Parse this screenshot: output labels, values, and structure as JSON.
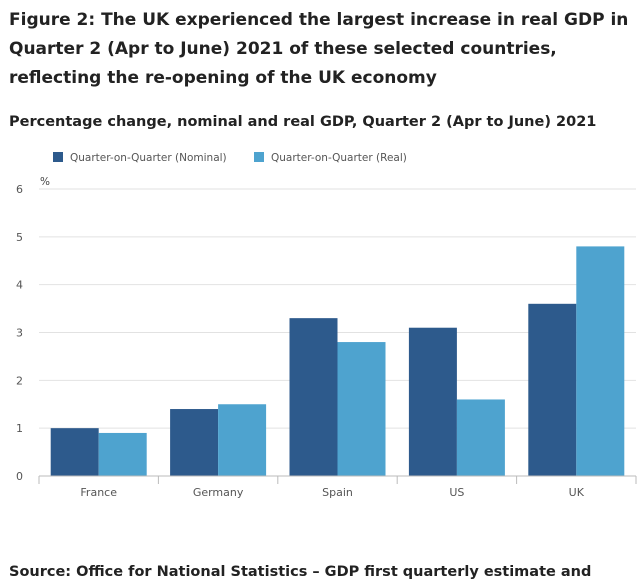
{
  "figure": {
    "title": "Figure 2: The UK experienced the largest increase in real GDP in Quarter 2 (Apr to June) 2021 of these selected countries, reflecting the re-opening of the UK economy",
    "subtitle": "Percentage change, nominal and real GDP, Quarter 2 (Apr to June) 2021",
    "source": "Source: Office for National Statistics – GDP first quarterly estimate and"
  },
  "chart_data": {
    "type": "bar",
    "title": "Percentage change, nominal and real GDP, Quarter 2 (Apr to June) 2021",
    "xlabel": "",
    "ylabel": "%",
    "ylim": [
      0,
      6
    ],
    "yticks": [
      0,
      1,
      2,
      3,
      4,
      5,
      6
    ],
    "grid": true,
    "legend_position": "top-left",
    "categories": [
      "France",
      "Germany",
      "Spain",
      "US",
      "UK"
    ],
    "series": [
      {
        "name": "Quarter-on-Quarter (Nominal)",
        "color": "#2d5a8c",
        "values": [
          1.0,
          1.4,
          3.3,
          3.1,
          3.6
        ]
      },
      {
        "name": "Quarter-on-Quarter (Real)",
        "color": "#4ea3cf",
        "values": [
          0.9,
          1.5,
          2.8,
          1.6,
          4.8
        ]
      }
    ]
  }
}
